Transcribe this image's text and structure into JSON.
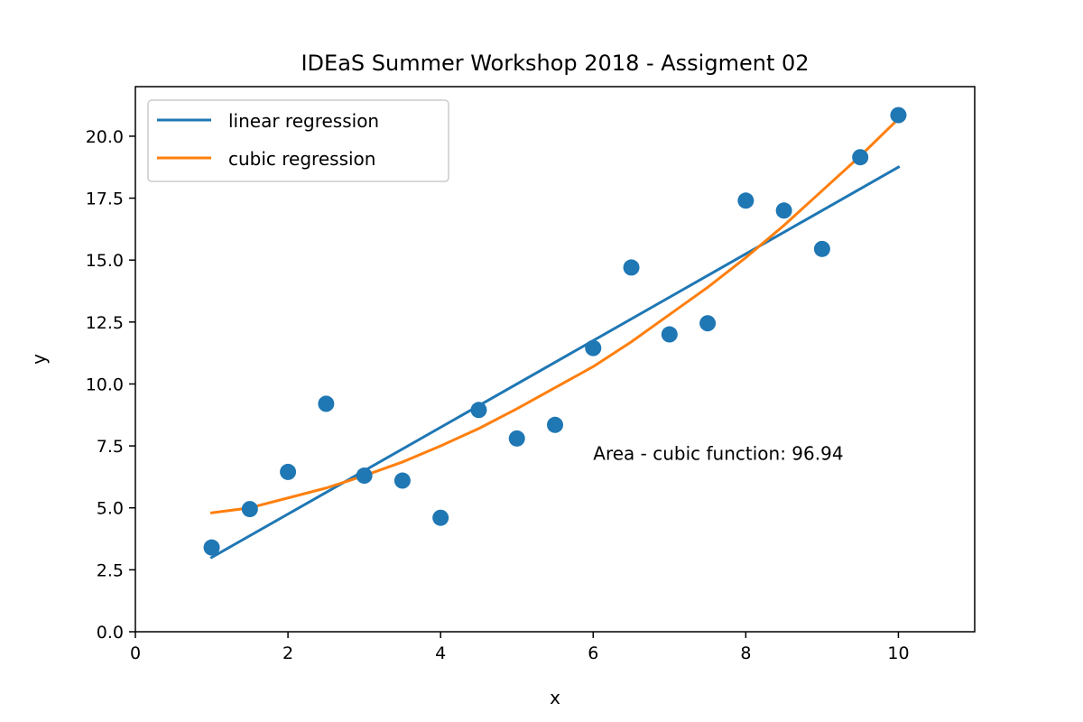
{
  "chart_data": {
    "type": "line",
    "title": "IDEaS Summer Workshop 2018 - Assigment 02",
    "xlabel": "x",
    "ylabel": "y",
    "xlim": [
      0,
      11
    ],
    "ylim": [
      0,
      22
    ],
    "xticks": [
      0,
      2,
      4,
      6,
      8,
      10
    ],
    "xtick_labels": [
      "0",
      "2",
      "4",
      "6",
      "8",
      "10"
    ],
    "yticks": [
      0,
      2.5,
      5,
      7.5,
      10,
      12.5,
      15,
      17.5,
      20
    ],
    "ytick_labels": [
      "0.0",
      "2.5",
      "5.0",
      "7.5",
      "10.0",
      "12.5",
      "15.0",
      "17.5",
      "20.0"
    ],
    "grid": false,
    "legend_position": "top-left",
    "scatter": {
      "color": "#1f77b4",
      "x": [
        1,
        1.5,
        2,
        2.5,
        3,
        3.5,
        4,
        4.5,
        5,
        5.5,
        6,
        6.5,
        7,
        7.5,
        8,
        8.5,
        9,
        9.5,
        10
      ],
      "y": [
        3.4,
        4.95,
        6.45,
        9.2,
        6.3,
        6.1,
        4.6,
        8.95,
        7.8,
        8.35,
        11.45,
        14.7,
        12.0,
        12.45,
        17.4,
        17.0,
        15.45,
        19.15,
        20.85
      ]
    },
    "series": [
      {
        "name": "linear regression",
        "color": "#1f77b4",
        "x": [
          1,
          10
        ],
        "y": [
          3.0,
          18.75
        ]
      },
      {
        "name": "cubic regression",
        "color": "#ff7f0e",
        "x": [
          1,
          1.5,
          2,
          2.5,
          3,
          3.5,
          4,
          4.5,
          5,
          5.5,
          6,
          6.5,
          7,
          7.5,
          8,
          8.5,
          9,
          9.5,
          10
        ],
        "y": [
          4.8,
          5.0,
          5.4,
          5.8,
          6.3,
          6.85,
          7.5,
          8.2,
          9.0,
          9.85,
          10.7,
          11.7,
          12.8,
          13.9,
          15.1,
          16.4,
          17.8,
          19.2,
          20.7
        ]
      }
    ],
    "annotations": [
      {
        "text": "Area - cubic function: 96.94",
        "x": 6.0,
        "y": 7.2
      }
    ]
  }
}
